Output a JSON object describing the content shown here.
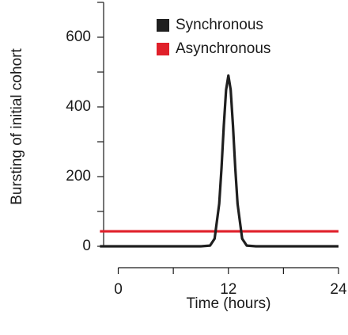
{
  "chart_data": {
    "type": "line",
    "x_label": "Time (hours)",
    "y_label": "Bursting of initial cohort",
    "x": [
      -2,
      0,
      2,
      4,
      6,
      8,
      9,
      10,
      10.5,
      11,
      11.25,
      11.5,
      11.75,
      12,
      12.25,
      12.5,
      12.75,
      13,
      13.5,
      14,
      15,
      16,
      18,
      20,
      22,
      24
    ],
    "series": [
      {
        "name": "Synchronous",
        "color": "#1f1f1f",
        "values": [
          0,
          0,
          0,
          0,
          0,
          0,
          0,
          2,
          22,
          122,
          224,
          346,
          449,
          490,
          449,
          346,
          224,
          122,
          22,
          2,
          0,
          0,
          0,
          0,
          0,
          0
        ]
      },
      {
        "name": "Asynchronous",
        "color": "#e0202a",
        "values": [
          43,
          43,
          43,
          43,
          43,
          43,
          43,
          43,
          43,
          43,
          43,
          43,
          43,
          43,
          43,
          43,
          43,
          43,
          43,
          43,
          43,
          43,
          43,
          43,
          43,
          43
        ]
      }
    ],
    "xlim": [
      -2.2,
      24
    ],
    "xticks": [
      0,
      12,
      24
    ],
    "xminor_ticks": [
      6,
      18
    ],
    "ylim": [
      -60,
      700
    ],
    "yticks": [
      0,
      200,
      400,
      600
    ],
    "yminor_ticks": [
      100,
      300,
      500,
      700
    ],
    "legend": "top"
  }
}
